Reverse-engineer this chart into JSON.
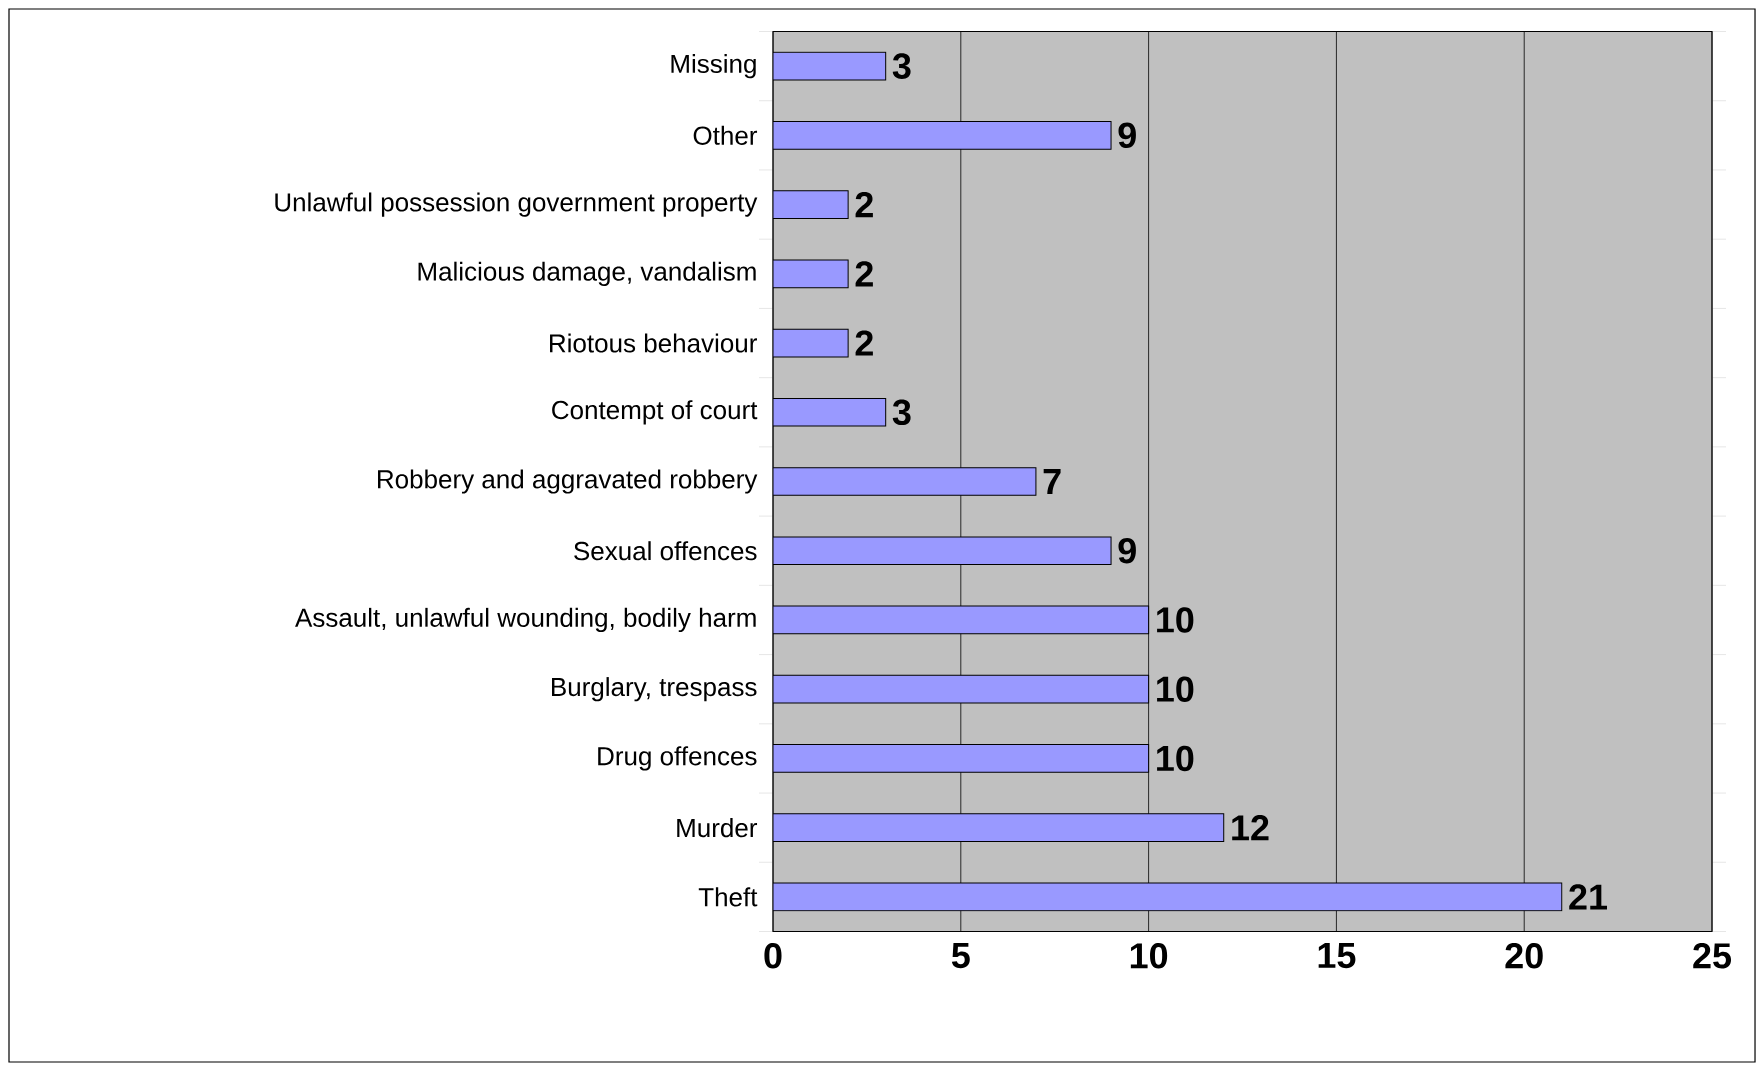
{
  "chart_data": {
    "type": "bar",
    "orientation": "horizontal",
    "categories": [
      "Missing",
      "Other",
      "Unlawful possession government property",
      "Malicious damage, vandalism",
      "Riotous behaviour",
      "Contempt of court",
      "Robbery and aggravated robbery",
      "Sexual offences",
      "Assault, unlawful wounding, bodily harm",
      "Burglary, trespass",
      "Drug offences",
      "Murder",
      "Theft"
    ],
    "values": [
      3,
      9,
      2,
      2,
      2,
      3,
      7,
      9,
      10,
      10,
      10,
      12,
      21
    ],
    "color": "#9999ff",
    "xlim": [
      0,
      25
    ],
    "xticks": [
      0,
      5,
      10,
      15,
      20,
      25
    ],
    "grid": "x",
    "data_labels": true
  }
}
